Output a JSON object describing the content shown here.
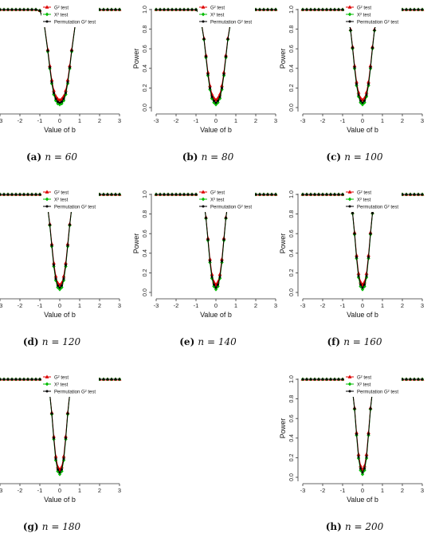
{
  "figure": {
    "panels": [
      {
        "id": "a",
        "label": "(a)",
        "n": "60",
        "show_ylabel": false
      },
      {
        "id": "b",
        "label": "(b)",
        "n": "80",
        "show_ylabel": true
      },
      {
        "id": "c",
        "label": "(c)",
        "n": "100",
        "show_ylabel": true
      },
      {
        "id": "d",
        "label": "(d)",
        "n": "120",
        "show_ylabel": false
      },
      {
        "id": "e",
        "label": "(e)",
        "n": "140",
        "show_ylabel": true
      },
      {
        "id": "f",
        "label": "(f)",
        "n": "160",
        "show_ylabel": true
      },
      {
        "id": "g",
        "label": "(g)",
        "n": "180",
        "show_ylabel": false
      },
      {
        "id": "h",
        "label": "(h)",
        "n": "200",
        "show_ylabel": true
      }
    ]
  },
  "chart_data": {
    "type": "line",
    "xlabel": "Value of b",
    "ylabel": "Power",
    "xlim": [
      -3,
      3
    ],
    "ylim": [
      0,
      1
    ],
    "x_ticks": [
      "-3",
      "-2",
      "-1",
      "0",
      "1",
      "2",
      "3"
    ],
    "y_ticks": [
      "0.0",
      "0.2",
      "0.4",
      "0.6",
      "0.8",
      "1.0"
    ],
    "n_prefix": "n = ",
    "legend_position": "top",
    "series": [
      {
        "name": "G² test",
        "color": "#dd0000",
        "marker": "triangle"
      },
      {
        "name": "X² test",
        "color": "#00bb00",
        "marker": "diamond"
      },
      {
        "name": "Permutation G² test",
        "color": "#000000",
        "marker": "circle"
      }
    ],
    "x": [
      -3.0,
      -2.8,
      -2.6,
      -2.4,
      -2.2,
      -2.0,
      -1.8,
      -1.6,
      -1.4,
      -1.2,
      -1.0,
      -0.8,
      -0.6,
      -0.5,
      -0.4,
      -0.3,
      -0.2,
      -0.1,
      0.0,
      0.1,
      0.2,
      0.3,
      0.4,
      0.5,
      0.6,
      0.8,
      1.0,
      1.2,
      1.4,
      1.6,
      1.8,
      2.0,
      2.2,
      2.4,
      2.6,
      2.8,
      3.0
    ],
    "power_by_n": {
      "60": [
        1,
        1,
        1,
        1,
        1,
        1,
        1,
        1,
        1,
        1,
        0.99,
        0.88,
        0.58,
        0.41,
        0.26,
        0.15,
        0.09,
        0.06,
        0.05,
        0.06,
        0.09,
        0.15,
        0.26,
        0.41,
        0.58,
        0.88,
        0.99,
        1,
        1,
        1,
        1,
        1,
        1,
        1,
        1,
        1,
        1
      ],
      "80": [
        1,
        1,
        1,
        1,
        1,
        1,
        1,
        1,
        1,
        1,
        1,
        0.95,
        0.7,
        0.52,
        0.34,
        0.2,
        0.11,
        0.07,
        0.05,
        0.07,
        0.11,
        0.2,
        0.34,
        0.52,
        0.7,
        0.95,
        1,
        1,
        1,
        1,
        1,
        1,
        1,
        1,
        1,
        1,
        1
      ],
      "100": [
        1,
        1,
        1,
        1,
        1,
        1,
        1,
        1,
        1,
        1,
        1,
        0.98,
        0.79,
        0.61,
        0.41,
        0.24,
        0.13,
        0.07,
        0.05,
        0.07,
        0.13,
        0.24,
        0.41,
        0.61,
        0.79,
        0.98,
        1,
        1,
        1,
        1,
        1,
        1,
        1,
        1,
        1,
        1,
        1
      ],
      "120": [
        1,
        1,
        1,
        1,
        1,
        1,
        1,
        1,
        1,
        1,
        1,
        0.99,
        0.86,
        0.69,
        0.48,
        0.28,
        0.14,
        0.07,
        0.05,
        0.07,
        0.14,
        0.28,
        0.48,
        0.69,
        0.86,
        0.99,
        1,
        1,
        1,
        1,
        1,
        1,
        1,
        1,
        1,
        1,
        1
      ],
      "140": [
        1,
        1,
        1,
        1,
        1,
        1,
        1,
        1,
        1,
        1,
        1,
        1,
        0.91,
        0.76,
        0.54,
        0.32,
        0.16,
        0.08,
        0.05,
        0.08,
        0.16,
        0.32,
        0.54,
        0.76,
        0.91,
        1,
        1,
        1,
        1,
        1,
        1,
        1,
        1,
        1,
        1,
        1,
        1
      ],
      "160": [
        1,
        1,
        1,
        1,
        1,
        1,
        1,
        1,
        1,
        1,
        1,
        1,
        0.94,
        0.81,
        0.6,
        0.36,
        0.17,
        0.08,
        0.05,
        0.08,
        0.17,
        0.36,
        0.6,
        0.81,
        0.94,
        1,
        1,
        1,
        1,
        1,
        1,
        1,
        1,
        1,
        1,
        1,
        1
      ],
      "180": [
        1,
        1,
        1,
        1,
        1,
        1,
        1,
        1,
        1,
        1,
        1,
        1,
        0.96,
        0.85,
        0.65,
        0.4,
        0.19,
        0.08,
        0.05,
        0.08,
        0.19,
        0.4,
        0.65,
        0.85,
        0.96,
        1,
        1,
        1,
        1,
        1,
        1,
        1,
        1,
        1,
        1,
        1,
        1
      ],
      "200": [
        1,
        1,
        1,
        1,
        1,
        1,
        1,
        1,
        1,
        1,
        1,
        1,
        0.97,
        0.88,
        0.7,
        0.44,
        0.21,
        0.09,
        0.05,
        0.09,
        0.21,
        0.44,
        0.7,
        0.88,
        0.97,
        1,
        1,
        1,
        1,
        1,
        1,
        1,
        1,
        1,
        1,
        1,
        1
      ]
    },
    "series_offsets": [
      0.015,
      -0.01,
      0
    ]
  }
}
